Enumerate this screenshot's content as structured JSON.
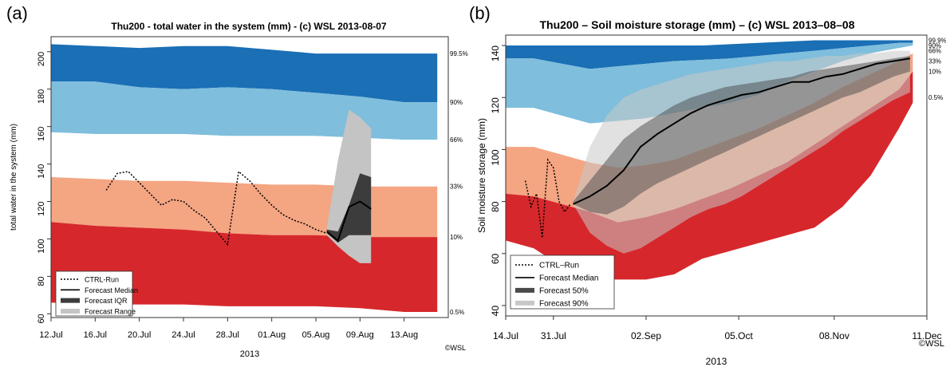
{
  "panels": [
    {
      "label": "(a)"
    },
    {
      "label": "(b)"
    }
  ],
  "colors": {
    "p99_5": "#1a6fb5",
    "p90": "#7fbedc",
    "p66": "#ffffff",
    "p33": "#f4a582",
    "p10": "#d6282c",
    "ctrl": "#000000",
    "median": "#000000",
    "iqr": "#3c3c3c",
    "range": "#c4c4c4",
    "forecast50": "#4a4a4a",
    "forecast90": "#c8c8c8"
  },
  "chart_data": [
    {
      "type": "area",
      "title": "Thu200 - total water in the system (mm) - (c) WSL 2013-08-07",
      "ylabel": "total water in the system (mm)",
      "xlabel": "2013",
      "ylim": [
        58,
        208
      ],
      "xlim": [
        0,
        36
      ],
      "x_ticks": [
        {
          "x": 0,
          "label": "12.Jul"
        },
        {
          "x": 4,
          "label": "16.Jul"
        },
        {
          "x": 8,
          "label": "20.Jul"
        },
        {
          "x": 12,
          "label": "24.Jul"
        },
        {
          "x": 16,
          "label": "28.Jul"
        },
        {
          "x": 20,
          "label": "01.Aug"
        },
        {
          "x": 24,
          "label": "05.Aug"
        },
        {
          "x": 28,
          "label": "09.Aug"
        },
        {
          "x": 32,
          "label": "13.Aug"
        }
      ],
      "y_ticks": [
        60,
        80,
        100,
        120,
        140,
        160,
        180,
        200
      ],
      "climatology_x": [
        0,
        4,
        8,
        12,
        16,
        20,
        24,
        28,
        32,
        35
      ],
      "bands": [
        {
          "name": "99.5%",
          "color_key": "p99_5",
          "upper": [
            204,
            203,
            202,
            203,
            203,
            201,
            199,
            199,
            199,
            199
          ],
          "lower": [
            184,
            184,
            181,
            180,
            181,
            180,
            178,
            176,
            173,
            173
          ]
        },
        {
          "name": "90%",
          "color_key": "p90",
          "upper": [
            184,
            184,
            181,
            180,
            181,
            180,
            178,
            176,
            173,
            173
          ],
          "lower": [
            157,
            156,
            156,
            156,
            155,
            155,
            155,
            154,
            153,
            153
          ]
        },
        {
          "name": "66%",
          "color_key": "p66",
          "upper": [
            157,
            156,
            156,
            156,
            155,
            155,
            155,
            154,
            153,
            153
          ],
          "lower": [
            133,
            132,
            131,
            131,
            130,
            129,
            129,
            128,
            128,
            128
          ]
        },
        {
          "name": "33%",
          "color_key": "p33",
          "upper": [
            133,
            132,
            131,
            131,
            130,
            129,
            129,
            128,
            128,
            128
          ],
          "lower": [
            109,
            107,
            106,
            105,
            103,
            102,
            102,
            101,
            101,
            101
          ]
        },
        {
          "name": "10%",
          "color_key": "p10",
          "upper": [
            109,
            107,
            106,
            105,
            103,
            102,
            102,
            101,
            101,
            101
          ],
          "lower": [
            66,
            65,
            65,
            65,
            64,
            64,
            64,
            63,
            61,
            61
          ]
        }
      ],
      "percentile_labels": [
        {
          "text": "99.5%",
          "y": 199
        },
        {
          "text": "90%",
          "y": 173
        },
        {
          "text": "66%",
          "y": 153
        },
        {
          "text": "33%",
          "y": 128
        },
        {
          "text": "10%",
          "y": 101
        },
        {
          "text": "0.5%",
          "y": 61
        }
      ],
      "ctrl_run": {
        "x": [
          5,
          6,
          7,
          8,
          9,
          10,
          11,
          12,
          13,
          14,
          15,
          16,
          17,
          18,
          19,
          20,
          21,
          22,
          23,
          24,
          25
        ],
        "y": [
          126,
          135,
          136,
          130,
          124,
          118,
          121,
          120,
          115,
          111,
          104,
          97,
          136,
          131,
          124,
          118,
          113,
          110,
          108,
          105,
          103
        ]
      },
      "forecast_x": [
        25,
        26,
        27,
        28,
        29
      ],
      "forecast_range": {
        "upper": [
          106,
          142,
          169,
          165,
          159
        ],
        "lower": [
          102,
          96,
          91,
          87,
          87
        ]
      },
      "forecast_iqr": {
        "upper": [
          105,
          104,
          118,
          135,
          133
        ],
        "lower": [
          103,
          98,
          102,
          102,
          102
        ]
      },
      "forecast_median": [
        104,
        99,
        117,
        120,
        116
      ],
      "legend": [
        "CTRL-Run",
        "Forecast Median",
        "Forecast IQR",
        "Forecast Range"
      ],
      "watermark": "©WSL",
      "grid": false,
      "legend_position": "bottom-left"
    },
    {
      "type": "area",
      "title": "Thu200 – Soil moisture storage (mm) – (c) WSL 2013–08–08",
      "ylabel": "Soil moisture storage (mm)",
      "xlabel": "2013",
      "ylim": [
        36,
        144
      ],
      "xlim": [
        0,
        150
      ],
      "x_ticks": [
        {
          "x": 0,
          "label": "14.Jul"
        },
        {
          "x": 17,
          "label": "31.Jul"
        },
        {
          "x": 50,
          "label": "02.Sep"
        },
        {
          "x": 83,
          "label": "05.Oct"
        },
        {
          "x": 117,
          "label": "08.Nov"
        },
        {
          "x": 150,
          "label": "11.Dec"
        }
      ],
      "y_ticks": [
        40,
        60,
        80,
        100,
        120,
        140
      ],
      "climatology_x": [
        0,
        10,
        20,
        30,
        40,
        50,
        60,
        70,
        80,
        90,
        100,
        110,
        120,
        130,
        140,
        145
      ],
      "bands": [
        {
          "name": "99.9%",
          "color_key": "p99_5",
          "upper": [
            140,
            140,
            140,
            140,
            140,
            140,
            140,
            140,
            140.5,
            141,
            141.5,
            142,
            142,
            142,
            142,
            142
          ],
          "lower": [
            135,
            135,
            133,
            131,
            132,
            133,
            134,
            134.5,
            135,
            136,
            137,
            138,
            139,
            140,
            141,
            141
          ]
        },
        {
          "name": "90%",
          "color_key": "p90",
          "upper": [
            135,
            135,
            133,
            131,
            132,
            133,
            134,
            134.5,
            135,
            136,
            137,
            138,
            139,
            140,
            141,
            141
          ],
          "lower": [
            116,
            116,
            113,
            110,
            111,
            112,
            114,
            116,
            118,
            121,
            126,
            130,
            134,
            137,
            139,
            140
          ]
        },
        {
          "name": "66%",
          "color_key": "p66",
          "upper": [
            116,
            116,
            113,
            110,
            111,
            112,
            114,
            116,
            118,
            121,
            126,
            130,
            134,
            137,
            139,
            140
          ],
          "lower": [
            101,
            101,
            98,
            95,
            93,
            94,
            96,
            100,
            104,
            108,
            113,
            118,
            124,
            129,
            134,
            137
          ]
        },
        {
          "name": "33%",
          "color_key": "p33",
          "upper": [
            101,
            101,
            98,
            95,
            93,
            94,
            96,
            100,
            104,
            108,
            113,
            118,
            124,
            129,
            134,
            137
          ],
          "lower": [
            83,
            82,
            79,
            76,
            72,
            74,
            77,
            81,
            85,
            90,
            95,
            102,
            109,
            116,
            123,
            130
          ]
        },
        {
          "name": "10%",
          "color_key": "p10",
          "upper": [
            83,
            82,
            79,
            76,
            72,
            74,
            77,
            81,
            85,
            90,
            95,
            102,
            109,
            116,
            123,
            130
          ],
          "lower": [
            65,
            62,
            55,
            50,
            50,
            50,
            52,
            58,
            61,
            64,
            67,
            70,
            78,
            90,
            108,
            118
          ]
        }
      ],
      "percentile_labels": [
        {
          "text": "99.9%",
          "y": 142
        },
        {
          "text": "90%",
          "y": 140
        },
        {
          "text": "66%",
          "y": 138
        },
        {
          "text": "33%",
          "y": 134
        },
        {
          "text": "10%",
          "y": 130
        },
        {
          "text": "0.5%",
          "y": 120
        }
      ],
      "ctrl_run": {
        "x": [
          7,
          9,
          11,
          13,
          15,
          17,
          19,
          21,
          23
        ],
        "y": [
          88,
          78,
          83,
          66,
          96,
          93,
          80,
          76,
          79
        ]
      },
      "forecast_x": [
        24,
        30,
        36,
        42,
        48,
        54,
        60,
        66,
        72,
        78,
        84,
        90,
        96,
        102,
        108,
        114,
        120,
        126,
        132,
        138,
        144
      ],
      "forecast_90": {
        "upper": [
          80,
          101,
          113,
          120,
          123,
          125,
          127,
          129,
          130,
          131,
          132,
          133,
          134,
          134,
          135,
          136,
          136,
          137,
          137,
          138,
          138
        ],
        "lower": [
          79,
          68,
          63,
          60,
          62,
          66,
          70,
          74,
          77,
          79,
          82,
          86,
          90,
          94,
          98,
          102,
          107,
          111,
          115,
          119,
          122
        ]
      },
      "forecast_50": {
        "upper": [
          80,
          88,
          96,
          104,
          109,
          113,
          117,
          120,
          122,
          124,
          125,
          126,
          127,
          128,
          130,
          131,
          132,
          133,
          134,
          135,
          136
        ],
        "lower": [
          79,
          76,
          75,
          78,
          83,
          87,
          90,
          93,
          96,
          99,
          102,
          105,
          108,
          111,
          114,
          117,
          120,
          122,
          125,
          128,
          130
        ]
      },
      "forecast_median": [
        79,
        82,
        86,
        92,
        101,
        106,
        110,
        114,
        117,
        119,
        121,
        122,
        124,
        126,
        126,
        128,
        129,
        131,
        133,
        134,
        135
      ],
      "legend": [
        "CTRL–Run",
        "Forecast Median",
        "Forecast 50%",
        "Forecast 90%"
      ],
      "watermark": "©WSL",
      "grid": false,
      "legend_position": "bottom-left"
    }
  ]
}
